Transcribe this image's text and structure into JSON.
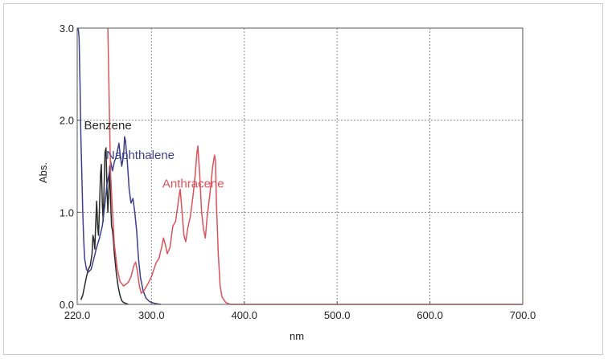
{
  "chart_data": {
    "type": "line",
    "xlabel": "nm",
    "ylabel": "Abs.",
    "xlim": [
      220.0,
      700.0
    ],
    "ylim": [
      0.0,
      3.0
    ],
    "x_ticks": [
      "220.0",
      "300.0",
      "400.0",
      "500.0",
      "600.0",
      "700.0"
    ],
    "x_tick_values": [
      220,
      300,
      400,
      500,
      600,
      700
    ],
    "y_ticks": [
      "0.0",
      "1.0",
      "2.0",
      "3.0"
    ],
    "y_tick_values": [
      0,
      1,
      2,
      3
    ],
    "x_grid": [
      300,
      400,
      500,
      600
    ],
    "y_grid": [
      1,
      2
    ],
    "grid": true,
    "series": [
      {
        "name": "Benzene",
        "color": "#2a2a2a",
        "points": [
          [
            224,
            0.05
          ],
          [
            226,
            0.1
          ],
          [
            228,
            0.2
          ],
          [
            230,
            0.3
          ],
          [
            232,
            0.38
          ],
          [
            234,
            0.42
          ],
          [
            236,
            0.55
          ],
          [
            237,
            0.75
          ],
          [
            238,
            0.7
          ],
          [
            239,
            0.6
          ],
          [
            240,
            0.9
          ],
          [
            241,
            1.12
          ],
          [
            242,
            0.85
          ],
          [
            243,
            0.75
          ],
          [
            244,
            1.05
          ],
          [
            245,
            1.4
          ],
          [
            246,
            1.52
          ],
          [
            247,
            1.1
          ],
          [
            248,
            0.9
          ],
          [
            249,
            1.3
          ],
          [
            250,
            1.65
          ],
          [
            251,
            1.7
          ],
          [
            252,
            1.3
          ],
          [
            253,
            1.0
          ],
          [
            254,
            1.2
          ],
          [
            255,
            1.5
          ],
          [
            256,
            1.1
          ],
          [
            257,
            0.85
          ],
          [
            258,
            0.8
          ],
          [
            259,
            0.7
          ],
          [
            260,
            0.55
          ],
          [
            262,
            0.35
          ],
          [
            264,
            0.2
          ],
          [
            266,
            0.1
          ],
          [
            268,
            0.04
          ],
          [
            270,
            0.02
          ],
          [
            275,
            0.0
          ]
        ]
      },
      {
        "name": "Naphthalene",
        "color": "#3c3f8a",
        "points": [
          [
            221,
            3.0
          ],
          [
            222,
            2.9
          ],
          [
            223,
            2.4
          ],
          [
            224,
            1.8
          ],
          [
            225,
            1.4
          ],
          [
            226,
            1.0
          ],
          [
            227,
            0.7
          ],
          [
            228,
            0.5
          ],
          [
            230,
            0.38
          ],
          [
            232,
            0.35
          ],
          [
            235,
            0.38
          ],
          [
            238,
            0.5
          ],
          [
            241,
            0.62
          ],
          [
            244,
            0.72
          ],
          [
            247,
            0.85
          ],
          [
            250,
            1.1
          ],
          [
            252,
            1.3
          ],
          [
            253,
            1.35
          ],
          [
            255,
            1.45
          ],
          [
            256,
            1.55
          ],
          [
            258,
            1.45
          ],
          [
            260,
            1.55
          ],
          [
            262,
            1.6
          ],
          [
            265,
            1.75
          ],
          [
            266,
            1.65
          ],
          [
            268,
            1.5
          ],
          [
            270,
            1.62
          ],
          [
            271,
            1.82
          ],
          [
            272,
            1.78
          ],
          [
            274,
            1.55
          ],
          [
            276,
            1.25
          ],
          [
            278,
            1.1
          ],
          [
            280,
            1.15
          ],
          [
            282,
            1.0
          ],
          [
            284,
            0.8
          ],
          [
            286,
            0.5
          ],
          [
            288,
            0.3
          ],
          [
            291,
            0.15
          ],
          [
            294,
            0.07
          ],
          [
            298,
            0.03
          ],
          [
            304,
            0.01
          ],
          [
            310,
            0.0
          ]
        ]
      },
      {
        "name": "Anthracene",
        "color": "#d9535b",
        "points": [
          [
            253,
            3.0
          ],
          [
            254,
            2.5
          ],
          [
            255,
            1.9
          ],
          [
            256,
            1.4
          ],
          [
            258,
            1.0
          ],
          [
            260,
            0.65
          ],
          [
            263,
            0.4
          ],
          [
            266,
            0.25
          ],
          [
            270,
            0.2
          ],
          [
            275,
            0.24
          ],
          [
            278,
            0.3
          ],
          [
            281,
            0.42
          ],
          [
            283,
            0.46
          ],
          [
            285,
            0.35
          ],
          [
            287,
            0.2
          ],
          [
            289,
            0.12
          ],
          [
            292,
            0.15
          ],
          [
            296,
            0.22
          ],
          [
            300,
            0.3
          ],
          [
            305,
            0.45
          ],
          [
            308,
            0.5
          ],
          [
            311,
            0.62
          ],
          [
            313,
            0.72
          ],
          [
            315,
            0.65
          ],
          [
            317,
            0.55
          ],
          [
            320,
            0.62
          ],
          [
            323,
            0.85
          ],
          [
            326,
            0.9
          ],
          [
            328,
            1.05
          ],
          [
            330,
            1.2
          ],
          [
            331,
            1.25
          ],
          [
            333,
            1.0
          ],
          [
            335,
            0.75
          ],
          [
            337,
            0.68
          ],
          [
            339,
            0.82
          ],
          [
            342,
            0.96
          ],
          [
            345,
            1.2
          ],
          [
            347,
            1.4
          ],
          [
            349,
            1.65
          ],
          [
            350,
            1.72
          ],
          [
            352,
            1.4
          ],
          [
            354,
            1.0
          ],
          [
            356,
            0.82
          ],
          [
            358,
            0.72
          ],
          [
            360,
            0.95
          ],
          [
            363,
            1.2
          ],
          [
            366,
            1.5
          ],
          [
            368,
            1.62
          ],
          [
            369,
            1.55
          ],
          [
            370,
            1.1
          ],
          [
            372,
            0.55
          ],
          [
            374,
            0.2
          ],
          [
            376,
            0.08
          ],
          [
            380,
            0.02
          ],
          [
            385,
            0.0
          ],
          [
            700,
            0.0
          ]
        ]
      }
    ]
  }
}
